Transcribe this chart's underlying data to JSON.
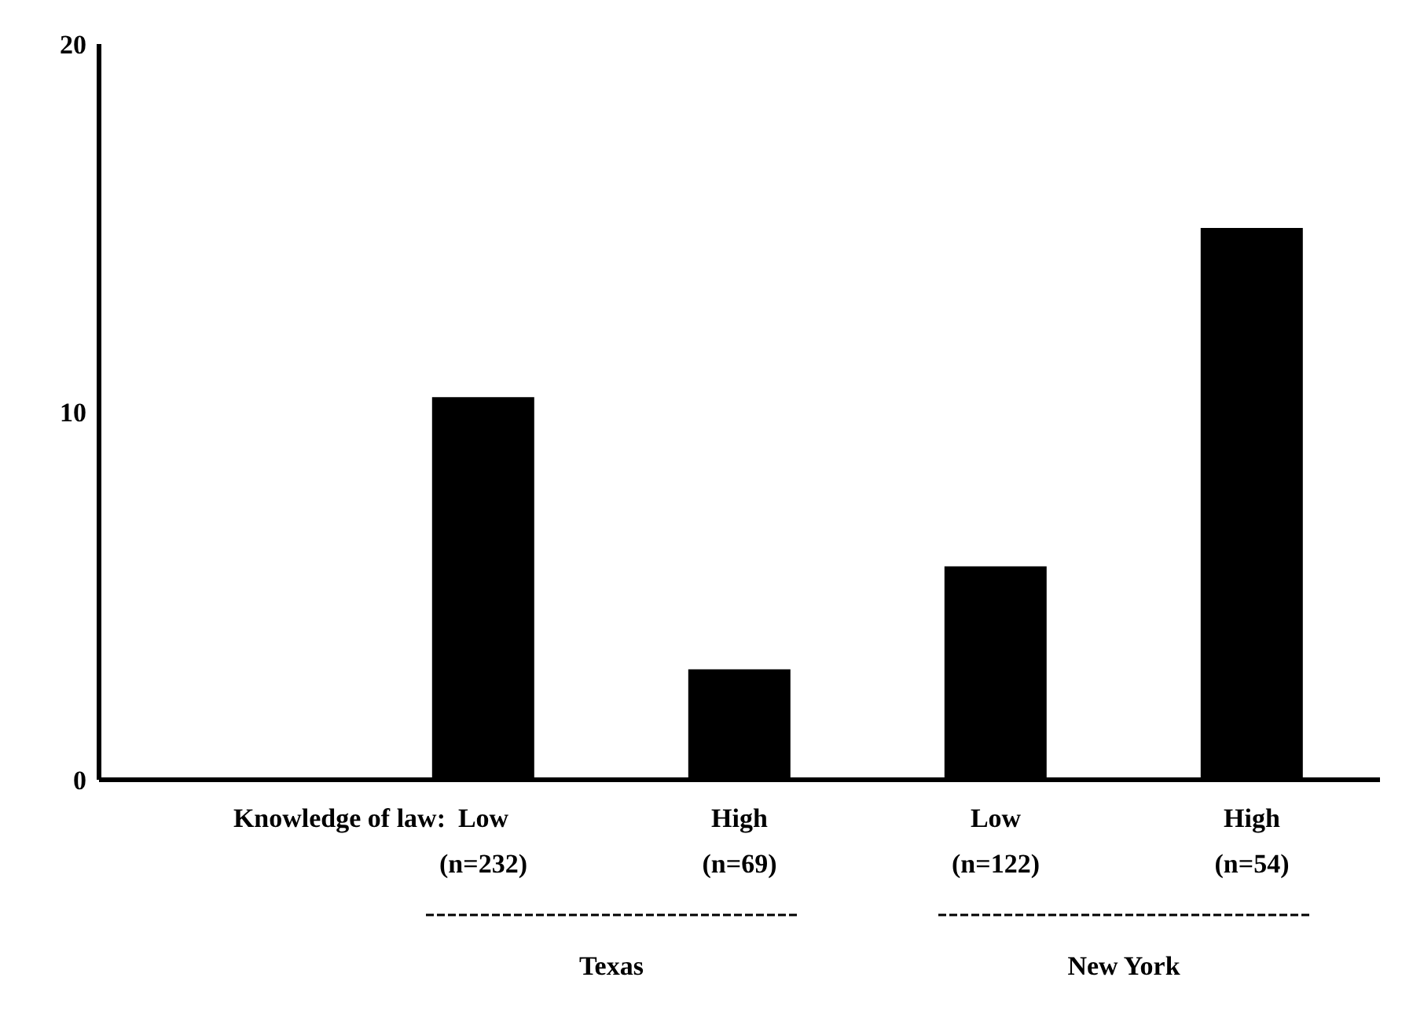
{
  "chart_data": {
    "type": "bar",
    "xlabel": "Knowledge of law:",
    "categories": [
      null,
      "Low\n(n=232)",
      "High\n(n=69)",
      "Low\n(n=122)",
      "High\n(n=54)"
    ],
    "values": [
      null,
      10.4,
      3,
      5.8,
      15
    ],
    "color": "#000000",
    "ylim": [
      0,
      20
    ],
    "yticks": [
      0,
      10,
      20
    ],
    "annotations": [
      "Texas",
      "New York"
    ]
  }
}
